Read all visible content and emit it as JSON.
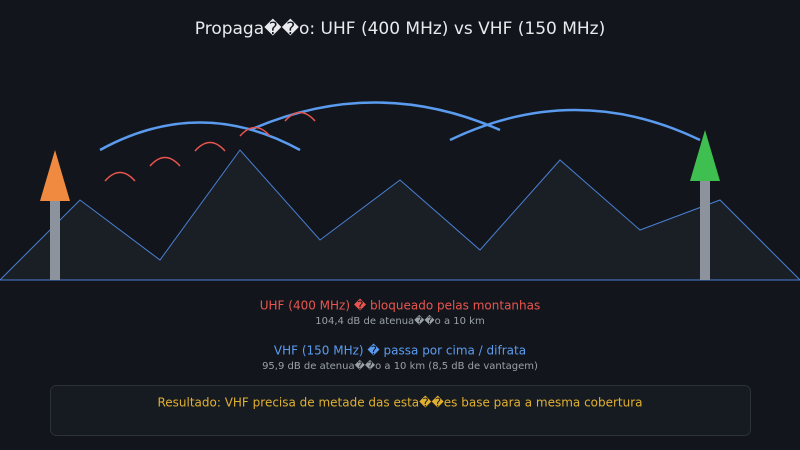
{
  "header": {
    "title": "Propaga��o: UHF (400 MHz) vs VHF (150 MHz)"
  },
  "results": [
    {
      "label": "UHF (400 MHz) � bloqueado pelas montanhas",
      "detail": "104,4 dB de atenua��o a 10 km"
    },
    {
      "label": "VHF (150 MHz) � passa por cima / difrata",
      "detail": "95,9 dB de atenua��o a 10 km (8,5 dB de vantagem)"
    }
  ],
  "conclusion": "Resultado: VHF precisa de metade das esta��es base para a mesma cobertura"
}
